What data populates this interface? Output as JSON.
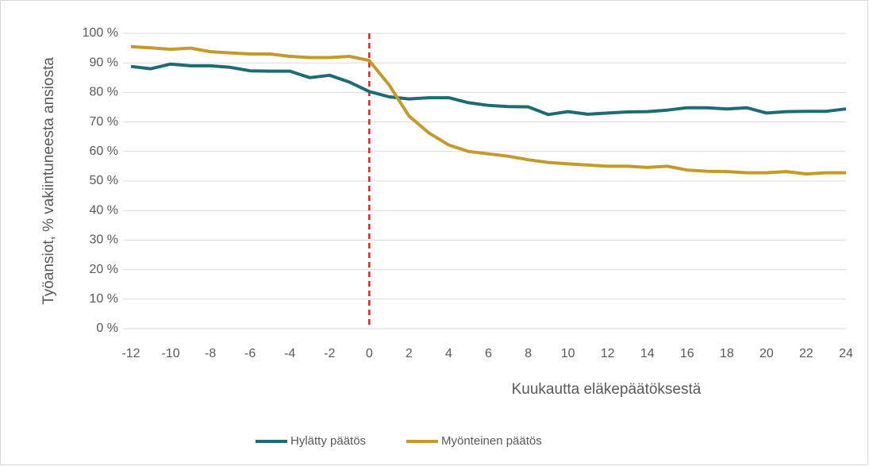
{
  "chart_data": {
    "type": "line",
    "x": [
      -12,
      -11,
      -10,
      -9,
      -8,
      -7,
      -6,
      -5,
      -4,
      -3,
      -2,
      -1,
      0,
      1,
      2,
      3,
      4,
      5,
      6,
      7,
      8,
      9,
      10,
      11,
      12,
      13,
      14,
      15,
      16,
      17,
      18,
      19,
      20,
      21,
      22,
      23,
      24
    ],
    "series": [
      {
        "name": "Hylätty päätös",
        "color": "#1e6b74",
        "values": [
          88.8,
          88,
          89.6,
          89,
          89,
          88.5,
          87.3,
          87.2,
          87.2,
          85,
          85.8,
          83.5,
          80.3,
          78.5,
          77.8,
          78.2,
          78.2,
          76.5,
          75.6,
          75.2,
          75.1,
          72.5,
          73.5,
          72.6,
          73,
          73.4,
          73.5,
          74,
          74.8,
          74.8,
          74.4,
          74.8,
          73,
          73.5,
          73.6,
          73.6,
          74.4
        ]
      },
      {
        "name": "Myönteinen päätös",
        "color": "#c49a28",
        "values": [
          95.5,
          95.1,
          94.6,
          95,
          93.8,
          93.4,
          93,
          93,
          92.2,
          91.8,
          91.8,
          92.2,
          90.8,
          82.5,
          72,
          66.3,
          62.2,
          60,
          59.2,
          58.4,
          57.2,
          56.3,
          55.8,
          55.4,
          55,
          55,
          54.6,
          55,
          53.7,
          53.3,
          53.2,
          52.8,
          52.8,
          53.2,
          52.4,
          52.8,
          52.8
        ]
      }
    ],
    "xlabel": "Kuukautta eläkepäätöksestä",
    "ylabel": "Työansiot, % vakiintuneesta ansiosta",
    "xlim": [
      -12,
      24
    ],
    "xticks": [
      -12,
      -10,
      -8,
      -6,
      -4,
      -2,
      0,
      2,
      4,
      6,
      8,
      10,
      12,
      14,
      16,
      18,
      20,
      22,
      24
    ],
    "ylim": [
      0,
      100
    ],
    "yticks": [
      {
        "value": 0,
        "label": "0 %"
      },
      {
        "value": 10,
        "label": "10 %"
      },
      {
        "value": 20,
        "label": "20 %"
      },
      {
        "value": 30,
        "label": "30 %"
      },
      {
        "value": 40,
        "label": "40 %"
      },
      {
        "value": 50,
        "label": "50 %"
      },
      {
        "value": 60,
        "label": "60 %"
      },
      {
        "value": 70,
        "label": "70 %"
      },
      {
        "value": 80,
        "label": "80 %"
      },
      {
        "value": 90,
        "label": "90 %"
      },
      {
        "value": 100,
        "label": "100 %"
      }
    ],
    "grid": true,
    "legend": "bottom",
    "reference_line": {
      "x": 0,
      "color": "#e0201b"
    }
  }
}
